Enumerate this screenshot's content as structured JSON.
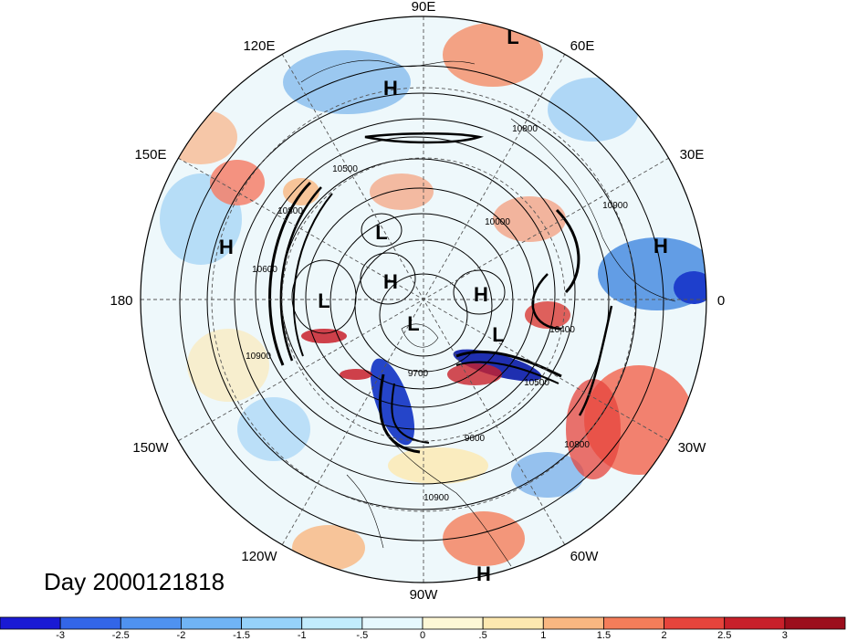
{
  "title": "Day 2000121818",
  "longitude_labels": [
    "90E",
    "60E",
    "30E",
    "0",
    "30W",
    "60W",
    "90W",
    "120W",
    "150W",
    "180",
    "150E",
    "120E"
  ],
  "pressure_systems": [
    {
      "type": "L",
      "lon_label": "near 70E, outer"
    },
    {
      "type": "H",
      "lon_label": "near 100E"
    },
    {
      "type": "H",
      "lon_label": "near 165E"
    },
    {
      "type": "H",
      "lon_label": "near 5E"
    },
    {
      "type": "L",
      "lon_label": "near 130E"
    },
    {
      "type": "H",
      "lon_label": "near 100E, polar"
    },
    {
      "type": "L",
      "lon_label": "near 170E"
    },
    {
      "type": "H",
      "lon_label": "near 30E"
    },
    {
      "type": "L",
      "lon_label": "near 120W"
    },
    {
      "type": "L",
      "lon_label": "near 40W"
    },
    {
      "type": "H",
      "lon_label": "near 80W"
    }
  ],
  "pressure_symbols": [
    "L",
    "H",
    "H",
    "H",
    "L",
    "H",
    "L",
    "H",
    "L",
    "L",
    "H"
  ],
  "contour_labels": [
    "10800",
    "10500",
    "10900",
    "10000",
    "10800",
    "10600",
    "10900",
    "9700",
    "10500",
    "10400",
    "9600",
    "10900",
    "10800"
  ],
  "colorbar": {
    "tick_labels": [
      "-3",
      "-2.5",
      "-2",
      "-1.5",
      "-1",
      "-.5",
      "0",
      ".5",
      "1",
      "1.5",
      "2",
      "2.5",
      "3"
    ],
    "colors": [
      "#1a1ad4",
      "#3366e8",
      "#4f92f0",
      "#70b4f5",
      "#96d2fa",
      "#c2ecfd",
      "#e6f8fe",
      "#fdf7d6",
      "#fde8b0",
      "#f9b781",
      "#f47d5a",
      "#e6443c",
      "#c8202a",
      "#9c0e1c"
    ]
  }
}
